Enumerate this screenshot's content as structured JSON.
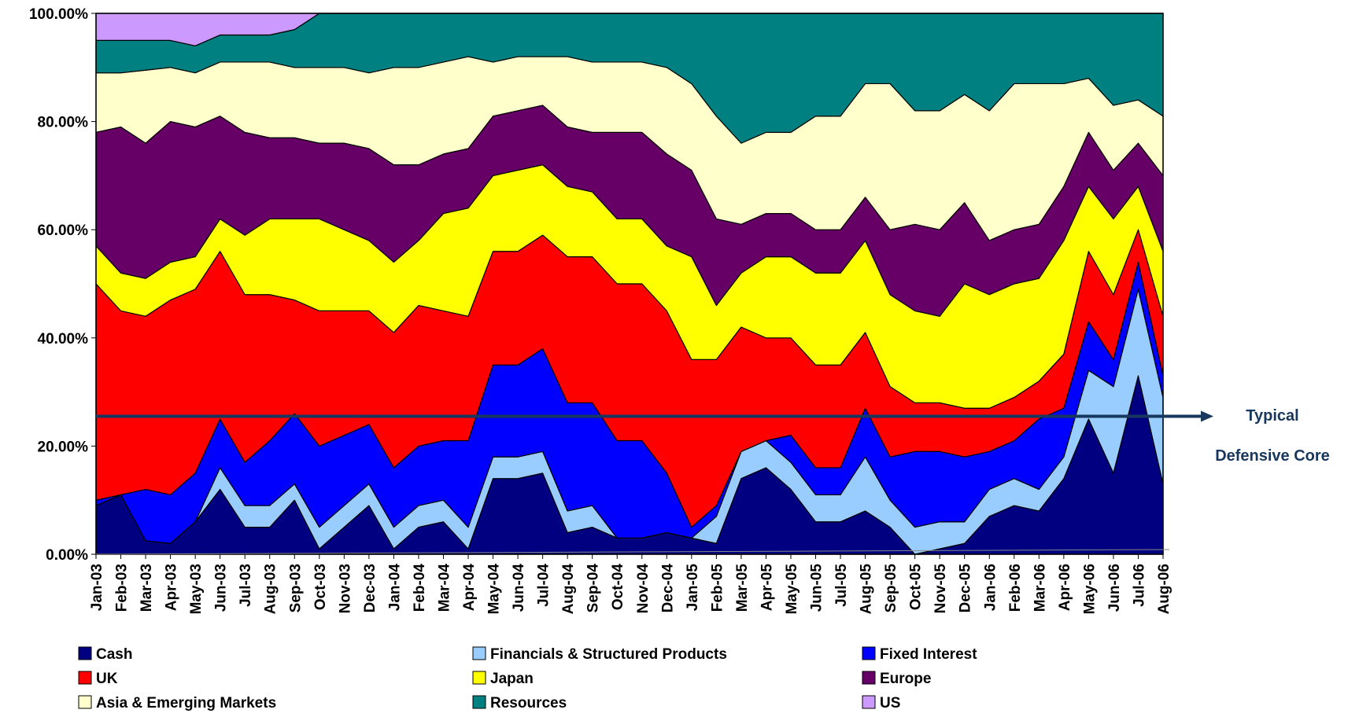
{
  "chart_data": {
    "type": "stacked_area",
    "categories": [
      "Jan-03",
      "Feb-03",
      "Mar-03",
      "Apr-03",
      "May-03",
      "Jun-03",
      "Jul-03",
      "Aug-03",
      "Sep-03",
      "Oct-03",
      "Nov-03",
      "Dec-03",
      "Jan-04",
      "Feb-04",
      "Mar-04",
      "Apr-04",
      "May-04",
      "Jun-04",
      "Jul-04",
      "Aug-04",
      "Sep-04",
      "Oct-04",
      "Nov-04",
      "Dec-04",
      "Jan-05",
      "Feb-05",
      "Mar-05",
      "Apr-05",
      "May-05",
      "Jun-05",
      "Jul-05",
      "Aug-05",
      "Sep-05",
      "Oct-05",
      "Nov-05",
      "Dec-05",
      "Jan-06",
      "Feb-06",
      "Mar-06",
      "Apr-06",
      "May-06",
      "Jun-06",
      "Jul-06",
      "Aug-06"
    ],
    "series": [
      {
        "name": "Cash",
        "color": "#000080",
        "values": [
          9,
          11,
          2.5,
          2,
          6,
          12,
          5,
          5,
          10,
          1,
          5,
          9,
          1,
          5,
          6,
          1,
          14,
          14,
          15,
          4,
          5,
          3,
          3,
          4,
          3,
          2,
          14,
          16,
          12,
          6,
          6,
          8,
          5,
          0,
          1,
          2,
          7,
          9,
          8,
          14,
          25,
          15,
          33,
          13
        ]
      },
      {
        "name": "Financials & Structured Products",
        "color": "#99ccff",
        "values": [
          0,
          0,
          0,
          0,
          0,
          4,
          4,
          4,
          3,
          4,
          4,
          4,
          4,
          4,
          4,
          4,
          4,
          4,
          4,
          4,
          4,
          0,
          0,
          0,
          0,
          5,
          5,
          5,
          5,
          5,
          5,
          10,
          5,
          5,
          5,
          4,
          5,
          5,
          4,
          4,
          9,
          16,
          16,
          16
        ]
      },
      {
        "name": "Fixed Interest",
        "color": "#0000ff",
        "values": [
          1,
          0,
          9.5,
          9,
          9,
          9,
          8,
          12,
          13,
          15,
          13,
          11,
          11,
          11,
          11,
          16,
          17,
          17,
          19,
          20,
          19,
          18,
          18,
          11,
          2,
          2,
          0,
          0,
          5,
          5,
          5,
          9,
          8,
          14,
          13,
          12,
          7,
          7,
          13,
          9,
          9,
          5,
          5,
          4
        ]
      },
      {
        "name": "UK",
        "color": "#ff0000",
        "values": [
          40,
          34,
          32,
          36,
          34,
          31,
          31,
          27,
          21,
          25,
          23,
          21,
          25,
          26,
          24,
          23,
          21,
          21,
          21,
          27,
          27,
          29,
          29,
          30,
          31,
          27,
          23,
          19,
          18,
          19,
          19,
          14,
          13,
          9,
          9,
          9,
          8,
          8,
          7,
          10,
          13,
          12,
          6,
          11
        ]
      },
      {
        "name": "Japan",
        "color": "#ffff00",
        "values": [
          7,
          7,
          7,
          7,
          6,
          6,
          11,
          14,
          15,
          17,
          15,
          13,
          13,
          12,
          18,
          20,
          14,
          15,
          13,
          13,
          12,
          12,
          12,
          12,
          19,
          10,
          10,
          15,
          15,
          17,
          17,
          17,
          17,
          17,
          16,
          23,
          21,
          21,
          19,
          21,
          12,
          14,
          8,
          12
        ]
      },
      {
        "name": "Europe",
        "color": "#660066",
        "values": [
          21,
          27,
          25,
          26,
          24,
          19,
          19,
          15,
          15,
          14,
          16,
          17,
          18,
          14,
          11,
          11,
          11,
          11,
          11,
          11,
          11,
          16,
          16,
          17,
          16,
          16,
          9,
          8,
          8,
          8,
          8,
          8,
          12,
          16,
          16,
          15,
          10,
          10,
          10,
          10,
          10,
          9,
          8,
          14
        ]
      },
      {
        "name": "Asia & Emerging Markets",
        "color": "#ffffcc",
        "values": [
          11,
          10,
          13.5,
          10,
          10,
          10,
          13,
          14,
          13,
          14,
          14,
          14,
          18,
          18,
          17,
          17,
          10,
          10,
          9,
          13,
          13,
          13,
          13,
          16,
          16,
          19,
          15,
          15,
          15,
          21,
          21,
          21,
          27,
          21,
          22,
          20,
          24,
          27,
          26,
          19,
          10,
          12,
          8,
          11
        ]
      },
      {
        "name": "Resources",
        "color": "#008080",
        "values": [
          6,
          6,
          5.5,
          5,
          5,
          5,
          5,
          5,
          7,
          10,
          10,
          11,
          10,
          10,
          9,
          8,
          9,
          8,
          8,
          8,
          9,
          9,
          9,
          10,
          13,
          19,
          24,
          22,
          22,
          19,
          19,
          13,
          13,
          18,
          18,
          15,
          18,
          13,
          13,
          13,
          12,
          17,
          16,
          19
        ]
      },
      {
        "name": "US",
        "color": "#cc99ff",
        "values": [
          5,
          5,
          5,
          5,
          6,
          4,
          4,
          4,
          3,
          0,
          0,
          0,
          0,
          0,
          0,
          0,
          0,
          0,
          0,
          0,
          0,
          0,
          0,
          0,
          0,
          0,
          0,
          0,
          0,
          0,
          0,
          0,
          0,
          0,
          0,
          0,
          0,
          0,
          0,
          0,
          0,
          0,
          0,
          0
        ]
      }
    ],
    "ylim": [
      0,
      100
    ],
    "yticks": [
      {
        "value": 0,
        "label": "0.00%"
      },
      {
        "value": 20,
        "label": "20.00%"
      },
      {
        "value": 40,
        "label": "40.00%"
      },
      {
        "value": 60,
        "label": "60.00%"
      },
      {
        "value": 80,
        "label": "80.00%"
      },
      {
        "value": 100,
        "label": "100.00%"
      }
    ],
    "reference_line": {
      "value": 25.5,
      "color": "#17375e",
      "label": [
        "Typical",
        "Defensive Core"
      ]
    },
    "legend": "bottom"
  }
}
